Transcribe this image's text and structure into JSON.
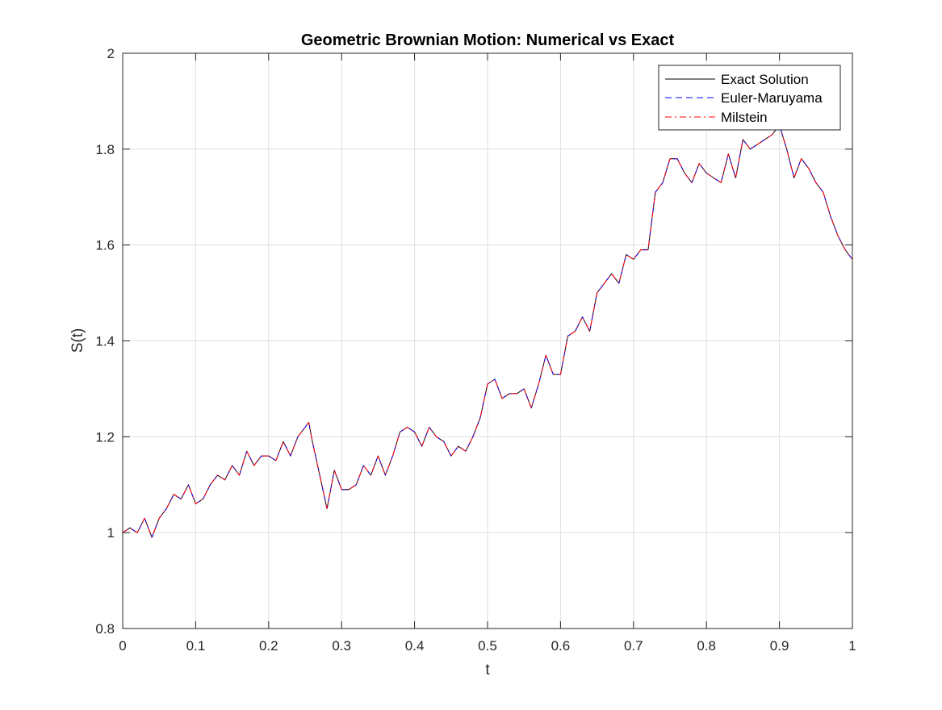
{
  "chart_data": {
    "type": "line",
    "title": "Geometric Brownian Motion: Numerical vs Exact",
    "xlabel": "t",
    "ylabel": "S(t)",
    "xlim": [
      0,
      1
    ],
    "ylim": [
      0.8,
      2
    ],
    "x_ticks": [
      "0",
      "0.1",
      "0.2",
      "0.3",
      "0.4",
      "0.5",
      "0.6",
      "0.7",
      "0.8",
      "0.9",
      "1"
    ],
    "y_ticks": [
      "0.8",
      "1",
      "1.2",
      "1.4",
      "1.6",
      "1.8",
      "2"
    ],
    "grid": true,
    "legend_position": "top-right",
    "x": [
      0,
      0.01,
      0.02,
      0.03,
      0.04,
      0.05,
      0.06,
      0.07,
      0.08,
      0.09,
      0.1,
      0.11,
      0.12,
      0.13,
      0.14,
      0.15,
      0.16,
      0.17,
      0.18,
      0.19,
      0.2,
      0.21,
      0.22,
      0.23,
      0.24,
      0.25,
      0.255,
      0.26,
      0.27,
      0.28,
      0.29,
      0.3,
      0.31,
      0.32,
      0.33,
      0.34,
      0.35,
      0.36,
      0.37,
      0.38,
      0.39,
      0.4,
      0.41,
      0.42,
      0.43,
      0.44,
      0.45,
      0.46,
      0.47,
      0.48,
      0.49,
      0.5,
      0.51,
      0.52,
      0.53,
      0.54,
      0.55,
      0.56,
      0.57,
      0.58,
      0.59,
      0.6,
      0.61,
      0.62,
      0.63,
      0.64,
      0.65,
      0.66,
      0.67,
      0.68,
      0.69,
      0.7,
      0.71,
      0.72,
      0.73,
      0.74,
      0.75,
      0.76,
      0.77,
      0.78,
      0.79,
      0.8,
      0.81,
      0.82,
      0.83,
      0.84,
      0.85,
      0.86,
      0.87,
      0.88,
      0.89,
      0.9,
      0.91,
      0.92,
      0.93,
      0.94,
      0.95,
      0.96,
      0.97,
      0.98,
      0.99,
      1.0
    ],
    "series": [
      {
        "name": "Exact Solution",
        "color": "#000000",
        "dash": "solid",
        "values": [
          1.0,
          1.01,
          1.0,
          1.03,
          0.99,
          1.03,
          1.05,
          1.08,
          1.07,
          1.1,
          1.06,
          1.07,
          1.1,
          1.12,
          1.11,
          1.14,
          1.12,
          1.17,
          1.14,
          1.16,
          1.16,
          1.15,
          1.19,
          1.16,
          1.2,
          1.22,
          1.23,
          1.19,
          1.12,
          1.05,
          1.13,
          1.09,
          1.09,
          1.1,
          1.14,
          1.12,
          1.16,
          1.12,
          1.16,
          1.21,
          1.22,
          1.21,
          1.18,
          1.22,
          1.2,
          1.19,
          1.16,
          1.18,
          1.17,
          1.2,
          1.24,
          1.31,
          1.32,
          1.28,
          1.29,
          1.29,
          1.3,
          1.26,
          1.31,
          1.37,
          1.33,
          1.33,
          1.41,
          1.42,
          1.45,
          1.42,
          1.5,
          1.52,
          1.54,
          1.52,
          1.58,
          1.57,
          1.59,
          1.59,
          1.71,
          1.73,
          1.78,
          1.78,
          1.75,
          1.73,
          1.77,
          1.75,
          1.74,
          1.73,
          1.79,
          1.74,
          1.82,
          1.8,
          1.81,
          1.82,
          1.83,
          1.85,
          1.8,
          1.74,
          1.78,
          1.76,
          1.73,
          1.71,
          1.66,
          1.62,
          1.59,
          1.57
        ]
      },
      {
        "name": "Euler-Maruyama",
        "color": "#0000ff",
        "dash": "dashed",
        "values": [
          1.0,
          1.01,
          1.0,
          1.03,
          0.99,
          1.03,
          1.05,
          1.08,
          1.07,
          1.1,
          1.06,
          1.07,
          1.1,
          1.12,
          1.11,
          1.14,
          1.12,
          1.17,
          1.14,
          1.16,
          1.16,
          1.15,
          1.19,
          1.16,
          1.2,
          1.22,
          1.23,
          1.19,
          1.12,
          1.05,
          1.13,
          1.09,
          1.09,
          1.1,
          1.14,
          1.12,
          1.16,
          1.12,
          1.16,
          1.21,
          1.22,
          1.21,
          1.18,
          1.22,
          1.2,
          1.19,
          1.16,
          1.18,
          1.17,
          1.2,
          1.24,
          1.31,
          1.32,
          1.28,
          1.29,
          1.29,
          1.3,
          1.26,
          1.31,
          1.37,
          1.33,
          1.33,
          1.41,
          1.42,
          1.45,
          1.42,
          1.5,
          1.52,
          1.54,
          1.52,
          1.58,
          1.57,
          1.59,
          1.59,
          1.71,
          1.73,
          1.78,
          1.78,
          1.75,
          1.73,
          1.77,
          1.75,
          1.74,
          1.73,
          1.79,
          1.74,
          1.82,
          1.8,
          1.81,
          1.82,
          1.83,
          1.85,
          1.8,
          1.74,
          1.78,
          1.76,
          1.73,
          1.71,
          1.66,
          1.62,
          1.59,
          1.57
        ]
      },
      {
        "name": "Milstein",
        "color": "#ff0000",
        "dash": "dashdot",
        "values": [
          1.0,
          1.01,
          1.0,
          1.03,
          0.99,
          1.03,
          1.05,
          1.08,
          1.07,
          1.1,
          1.06,
          1.07,
          1.1,
          1.12,
          1.11,
          1.14,
          1.12,
          1.17,
          1.14,
          1.16,
          1.16,
          1.15,
          1.19,
          1.16,
          1.2,
          1.22,
          1.23,
          1.19,
          1.12,
          1.05,
          1.13,
          1.09,
          1.09,
          1.1,
          1.14,
          1.12,
          1.16,
          1.12,
          1.16,
          1.21,
          1.22,
          1.21,
          1.18,
          1.22,
          1.2,
          1.19,
          1.16,
          1.18,
          1.17,
          1.2,
          1.24,
          1.31,
          1.32,
          1.28,
          1.29,
          1.29,
          1.3,
          1.26,
          1.31,
          1.37,
          1.33,
          1.33,
          1.41,
          1.42,
          1.45,
          1.42,
          1.5,
          1.52,
          1.54,
          1.52,
          1.58,
          1.57,
          1.59,
          1.59,
          1.71,
          1.73,
          1.78,
          1.78,
          1.75,
          1.73,
          1.77,
          1.75,
          1.74,
          1.73,
          1.79,
          1.74,
          1.82,
          1.8,
          1.81,
          1.82,
          1.83,
          1.85,
          1.8,
          1.74,
          1.78,
          1.76,
          1.73,
          1.71,
          1.66,
          1.62,
          1.59,
          1.57
        ]
      }
    ]
  }
}
